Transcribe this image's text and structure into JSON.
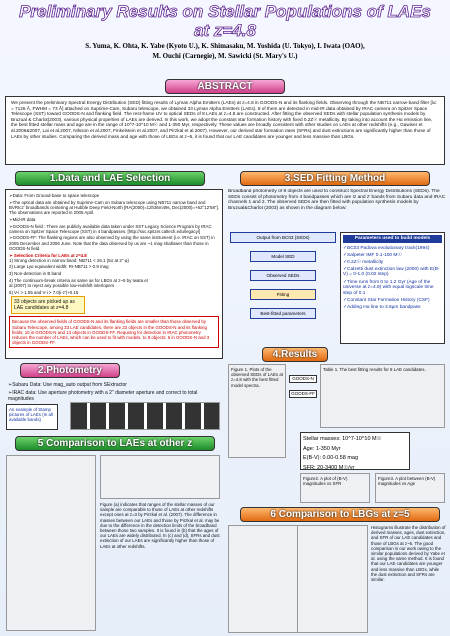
{
  "header": {
    "title": "Preliminary Results on Stellar Populations of LAEs at z=4.8",
    "authors": "S. Yuma, K. Ohta, K. Yabe (Kyoto U.), K. Shimasaku, M. Yoshida (U. Tokyo), I. Iwata (OAO),",
    "authors2": "M. Ouchi (Carnegie), M. Sawicki (St. Mary's U.)"
  },
  "abstract": {
    "title": "ABSTRACT",
    "text": "We present the preliminary Spectral Energy Distribution (SED) fitting results of Lyman Alpha Emitters (LAEs) at z=4.8 in GOODS-N and its flanking fields. Observing through the NB711 narrow-band filter [λc = 7126 Å, FWHM = 73 Å] attached on Suprime-Cam, Subaru telescope, we obtained 33 Lyman Alpha Emitters (LAEs). 8 of them are detected in mid-IR data obtained by IRAC camera on Spitzer Space Telescope (SST) toward GOODS-N and flanking field. The rest-frame UV to optical SEDs of 8 LAEs at z=4.8 are constructed. After fitting the observed SEDs with stellar population synthesis models by Bruzual & Charlot(2003), various physical properties of LAEs are derived. In this work, we adopt the constant star formation history with fixed 0.2Z☉ metallicity. By taking into account the Hα emission line, the best fitted stellar mass and age are in the range of 10^7-10^10 M☉ and 1-350 Myr, respectively. These values are broadly consistent with other studies on LAEs at other redshifts (e.g., Gawiser et al.2006&2007, Lai et al.2007, Nilsson et al.2007, Finkelstein et al.2007, and Pirzkal et al.2007). However, our derived star formation rates (SFRs) and dust extinctions are significantly higher than those of LAEs by other studies. Comparing the derived mass and age with those of LBGs at z~5, it is found that our LAE candidates are younger and less massive than LBGs."
  },
  "data_section": {
    "title": "1.Data and LAE Selection",
    "items": [
      "➢Data: From Ground-base to space telescope",
      "➢The optical data are obtained by Suprime-Cam on Subaru telescope using NB711 narrow band and BVRIcz' broadbands centering at Hubble Deep Field-North [RA(2000)=12h36m49s, Dec(2000)=+62°12'58\"]. The observations are reported in 2005 April.",
      "➢Mid-IR data",
      "➢GOODS-N field : There are publicly available data taken under SST Legacy Science Program by IRAC camera on Spitzer Space Telescope (SST) in 4 bandpasses. [http://ssc.spitzer.caltech.edu/legacy/]",
      "➢GOODS-FF: The flanking regions are also observed by using the same instrument (i.e. IRAC on SST) in 2005 December and 2006 June. Note that the data observed by us are ~1 mag shallower than those in GOODS-N field."
    ],
    "criteria_title": "➢ Selection Criteria for LAEs at z=4.8",
    "criteria": [
      "1) Strong detection in narrow band: NB711 < 26.1 (5σ at 2\" φ)",
      "2) Large Lyα equivalent width: RI-NB711 > 0.9 mag",
      "3) Non-detection in B band",
      "4) The continuum-break criteria as same as for LBGs at z~5 by Iwata et al.(2007) to reject any possible low-redshift interlopers",
      "5) V-i > 1.55 and V-i > 7.0(i-z')+0.15"
    ],
    "highlight": "33 objects are picked up as LAE candidates at z=4.8",
    "note": "Because the observed fields of GOODS-N and its flanking fields are smaller than those observed by Subaru Telescope, among 33 LAE candidates, there are 23 objects in the GOODS-N and its flanking fields; 10 in GOODS-N and 13 objects in GOODS-FF. Requiring for detection in IRAC photometry reduces the number of LAEs, which can be used to fit with models, to 8 objects: 5 in GOODS-N and 3 objects in GOODS-FF."
  },
  "photometry": {
    "title": "2.Photometry",
    "items": [
      "➢Subaru Data: Use mag_auto output from SExtractor",
      "➢IRAC data: Use aperture photometry with a 2\" diameter aperture and correct to total magnitudes"
    ],
    "stamp_label": "An example of Stamp pictures of LAEs (In all available bands)"
  },
  "sed": {
    "title": "3.SED Fitting Method",
    "text": "Broadband photometry of 8 objects are used to construct Spectral Energy Distributions (SEDs). The SEDs consist of photometry from 4 bandpasses which are Iz and z' bands from Subaru data and IRAC channels 1 and 2. The observed SEDs are then fitted with population synthesis models by Bruzual&Charlot (2003) as shown in the diagram below:",
    "flow": [
      "Output from BC03 (SEDs)",
      "Model SED",
      "Observed SEDs",
      "Fitting",
      "Best-fitted parameters"
    ],
    "params_title": "Parameters used to build models",
    "params": [
      "✓BC03 Padova evolutionary track(1994)",
      "✓Salpeter IMF 0.1-100 M☉",
      "✓0.2Z☉ metallicity",
      "✓Calzetti dust extinction law (2000) with E(B-V) = 0-1.0 (0.02 step)",
      "✓Time runs from 0 to 1.2 Gyr (Age of the universe at z=4.8) with equal logscale time step of 0.1",
      "✓Constant Star Formation History (CSF)",
      "✓Adding Hα line to 3.6µm bandpass"
    ]
  },
  "results": {
    "title": "4.Results",
    "fields": [
      "GOODS-N",
      "GOODS-FF"
    ],
    "summary": [
      "Stellar masses: 10^7-10^10 M☉",
      "Age: 1-350 Myr",
      "E(B-V): 0.00-0.58 mag",
      "SFR: 20-3400 M☉/yr"
    ],
    "captions": [
      "Figure 1. Plots of the observed SEDs of LAEs at z=4.8 with the best fitted model spectra.",
      "Table 1. The best fitting results for 8 LAE candidates.",
      "Figure2. A plot of (B-V) magnitudes vs SFR",
      "Figure3. A plot between (B-V) magnitudes vs Age"
    ]
  },
  "comparison_lae": {
    "title": "5 Comparison to LAEs at other z",
    "text": "Figure (a) indicates that ranges of the stellar masses of our sample are comparable to those of LAEs at other redshifts except ones at z=3 by Pirzkal et al. (2007). The difference in masses between our LAEs and those by Pirzkal et al. may be due to the difference in the detection limits of the broadband between those two samples. It is found in (b) that the ages of our LAEs are widely distributed. In (c) and (d), SFRs and dust extinction of our LAEs are significantly higher than those of LAEs at other redshifts."
  },
  "comparison_lbg": {
    "title": "6 Comparison to LBGs at z=5",
    "text": "Histograms illustrate the distribution of derived masses, ages, dust extinction, and SFR of our LAE candidates and those of LBGs at z~5. The good comparison is our work owing to the similar populations derived by Yabe et al. using the same method. It is found that our LAE candidates are younger and less massive than LBGs, while the dust extinction and SFRs are similar."
  }
}
